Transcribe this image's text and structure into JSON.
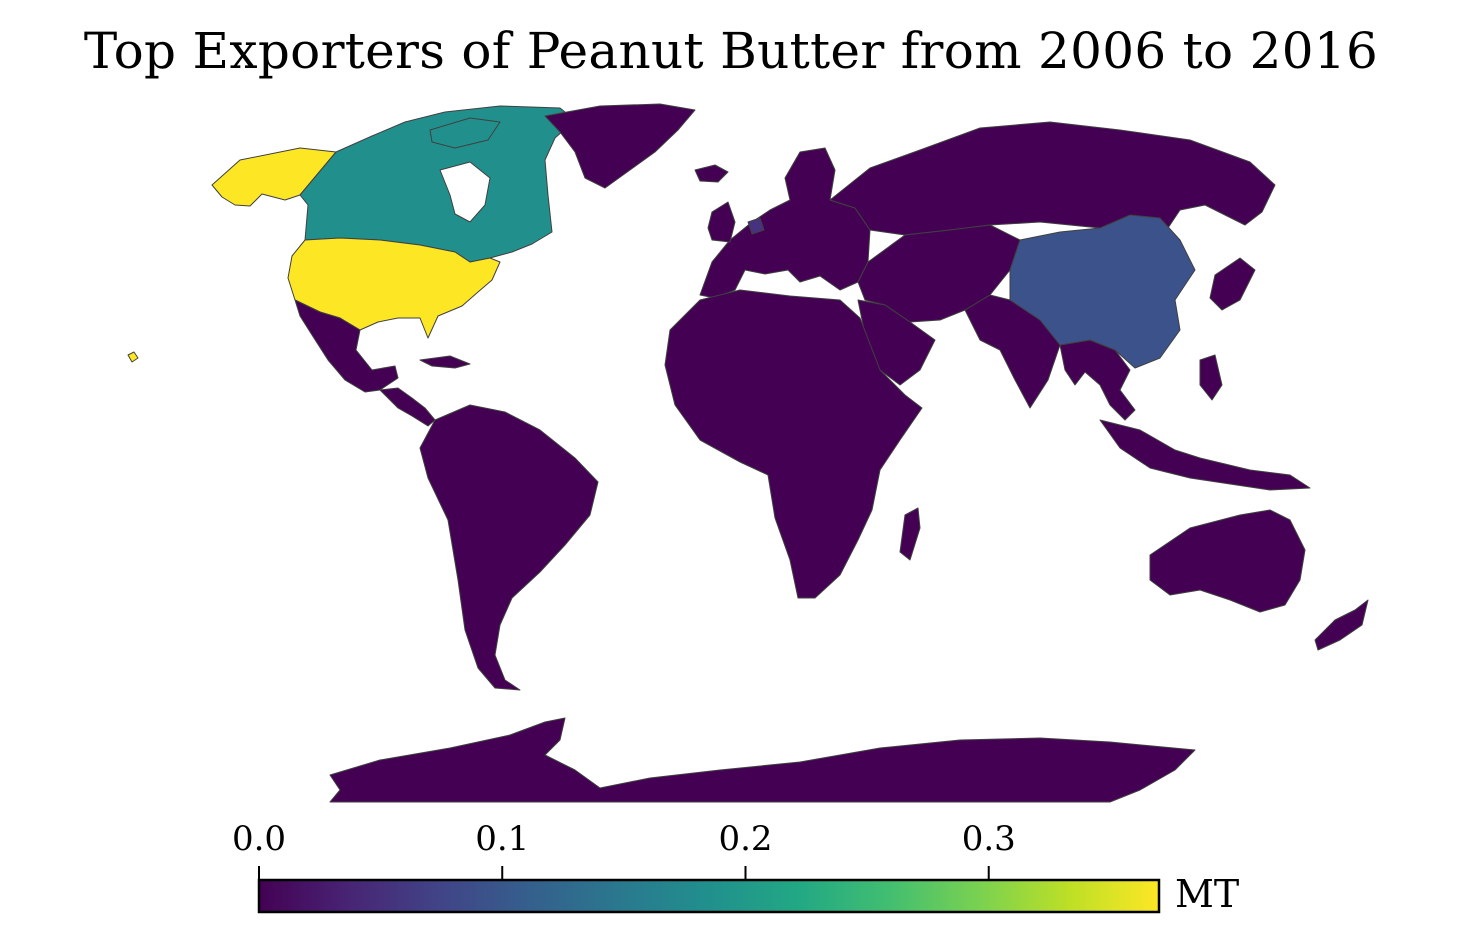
{
  "title": "Top Exporters of Peanut Butter from 2006 to 2016",
  "map": {
    "projection": "world map, Pacific split, Antarctica at bottom",
    "border_color": "#404040",
    "ocean_color": "#ffffff",
    "countries": [
      {
        "name": "United States",
        "value": 0.37,
        "color": "#fde725"
      },
      {
        "name": "Canada",
        "value": 0.18,
        "color": "#21908d"
      },
      {
        "name": "China",
        "value": 0.09,
        "color": "#3b528b"
      },
      {
        "name": "Netherlands",
        "value": 0.03,
        "color": "#46327e"
      },
      {
        "name": "All other countries",
        "value": 0.0,
        "color": "#440154"
      }
    ]
  },
  "colorbar": {
    "colormap": "viridis",
    "range": [
      0.0,
      0.37
    ],
    "ticks": [
      {
        "value": 0.0,
        "label": "0.0"
      },
      {
        "value": 0.1,
        "label": "0.1"
      },
      {
        "value": 0.2,
        "label": "0.2"
      },
      {
        "value": 0.3,
        "label": "0.3"
      }
    ],
    "unit": "MT"
  }
}
